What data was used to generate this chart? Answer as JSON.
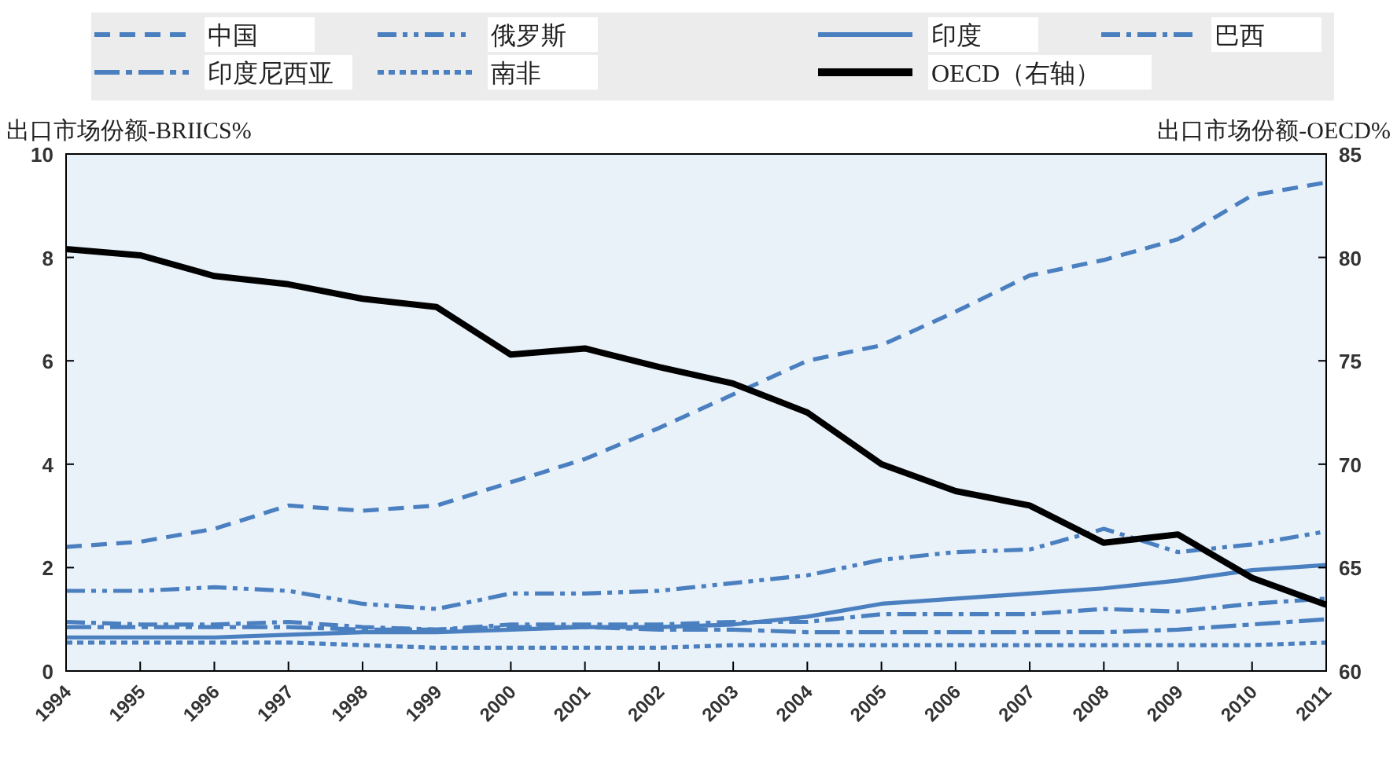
{
  "chart_data": {
    "type": "line",
    "ylabel": "出口市场份额-BRIICS%",
    "y2label": "出口市场份额-OECD%",
    "categories": [
      "1994",
      "1995",
      "1996",
      "1997",
      "1998",
      "1999",
      "2000",
      "2001",
      "2002",
      "2003",
      "2004",
      "2005",
      "2006",
      "2007",
      "2008",
      "2009",
      "2010",
      "2011"
    ],
    "series": [
      {
        "name": "中国",
        "color": "#4a7fc0",
        "line_style": "dashed",
        "values": [
          2.4,
          2.5,
          2.75,
          3.2,
          3.1,
          3.2,
          3.65,
          4.1,
          4.7,
          5.35,
          6.0,
          6.3,
          6.95,
          7.65,
          7.95,
          8.35,
          9.2,
          9.45
        ]
      },
      {
        "name": "俄罗斯",
        "color": "#4a7fc0",
        "line_style": "dashdotdot",
        "values": [
          1.55,
          1.55,
          1.62,
          1.55,
          1.3,
          1.2,
          1.5,
          1.5,
          1.55,
          1.7,
          1.85,
          2.15,
          2.3,
          2.35,
          2.75,
          2.3,
          2.45,
          2.7
        ]
      },
      {
        "name": "印度",
        "color": "#4a7fc0",
        "line_style": "solid",
        "values": [
          0.65,
          0.65,
          0.65,
          0.7,
          0.75,
          0.75,
          0.8,
          0.85,
          0.85,
          0.9,
          1.05,
          1.3,
          1.4,
          1.5,
          1.6,
          1.75,
          1.95,
          2.05
        ]
      },
      {
        "name": "巴西",
        "color": "#4a7fc0",
        "line_style": "dashdot",
        "values": [
          0.95,
          0.9,
          0.9,
          0.95,
          0.85,
          0.8,
          0.9,
          0.9,
          0.9,
          0.95,
          0.95,
          1.1,
          1.1,
          1.1,
          1.2,
          1.15,
          1.3,
          1.4
        ]
      },
      {
        "name": "印度尼西亚",
        "color": "#4a7fc0",
        "line_style": "longdashdot",
        "values": [
          0.85,
          0.85,
          0.85,
          0.85,
          0.8,
          0.8,
          0.85,
          0.85,
          0.8,
          0.8,
          0.75,
          0.75,
          0.75,
          0.75,
          0.75,
          0.8,
          0.9,
          1.0
        ]
      },
      {
        "name": "南非",
        "color": "#4a7fc0",
        "line_style": "dotted",
        "values": [
          0.55,
          0.55,
          0.55,
          0.55,
          0.5,
          0.45,
          0.45,
          0.45,
          0.45,
          0.5,
          0.5,
          0.5,
          0.5,
          0.5,
          0.5,
          0.5,
          0.5,
          0.55
        ]
      },
      {
        "name": "OECD（右轴）",
        "color": "#000000",
        "line_style": "solid",
        "axis": "y2",
        "values": [
          80.4,
          80.1,
          79.1,
          78.7,
          78.0,
          77.6,
          75.3,
          75.6,
          74.7,
          73.9,
          72.5,
          70.0,
          68.7,
          68.0,
          66.2,
          66.6,
          64.5,
          63.2
        ]
      }
    ],
    "ylim": [
      0,
      10
    ],
    "yticks": [
      0,
      2,
      4,
      6,
      8,
      10
    ],
    "y2lim": [
      60,
      85
    ],
    "y2ticks": [
      60,
      65,
      70,
      75,
      80,
      85
    ],
    "grid": false,
    "legend": "top"
  }
}
